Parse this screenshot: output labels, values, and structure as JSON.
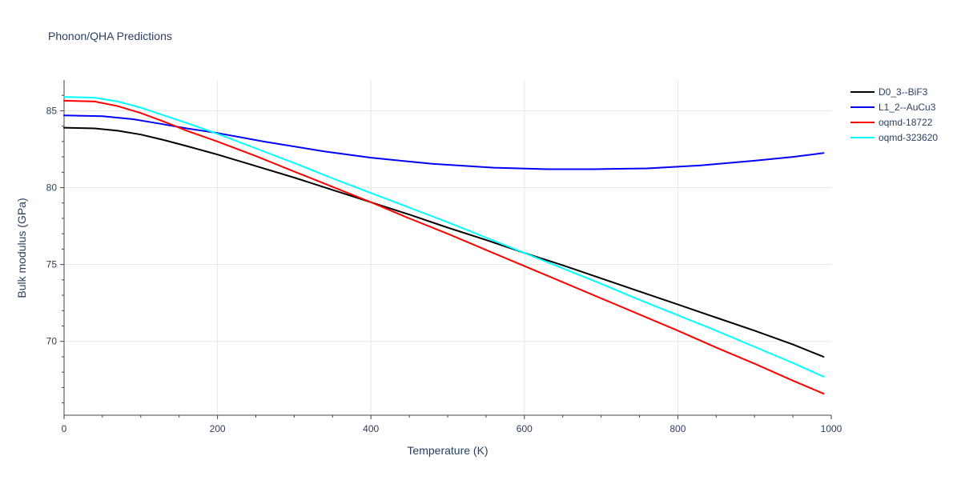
{
  "chart_data": {
    "type": "line",
    "title": "Phonon/QHA Predictions",
    "xlabel": "Temperature (K)",
    "ylabel": "Bulk modulus (GPa)",
    "xlim": [
      0,
      1000
    ],
    "ylim": [
      65.2,
      87.0
    ],
    "xticks": [
      0,
      200,
      400,
      600,
      800,
      1000
    ],
    "xtick_labels": [
      "0",
      "200",
      "400",
      "600",
      "800",
      "1000"
    ],
    "yticks": [
      70,
      75,
      80,
      85
    ],
    "ytick_labels": [
      "70",
      "75",
      "80",
      "85"
    ],
    "grid": true,
    "legend_position": "top-right",
    "series": [
      {
        "name": "D0_3--BiF3",
        "color": "#000000",
        "x": [
          0,
          40,
          70,
          100,
          130,
          160,
          200,
          250,
          300,
          350,
          400,
          450,
          500,
          550,
          600,
          650,
          700,
          750,
          800,
          850,
          900,
          950,
          990
        ],
        "y": [
          83.9,
          83.85,
          83.7,
          83.45,
          83.1,
          82.7,
          82.15,
          81.4,
          80.65,
          79.85,
          79.05,
          78.25,
          77.4,
          76.6,
          75.75,
          74.95,
          74.1,
          73.25,
          72.4,
          71.55,
          70.7,
          69.8,
          69.0
        ]
      },
      {
        "name": "L1_2--AuCu3",
        "color": "#0000ff",
        "x": [
          0,
          50,
          90,
          120,
          160,
          200,
          260,
          340,
          400,
          480,
          560,
          630,
          690,
          760,
          830,
          900,
          950,
          990
        ],
        "y": [
          84.7,
          84.65,
          84.45,
          84.2,
          83.85,
          83.55,
          83.0,
          82.35,
          81.95,
          81.55,
          81.3,
          81.2,
          81.2,
          81.25,
          81.45,
          81.75,
          82.0,
          82.25
        ]
      },
      {
        "name": "oqmd-18722",
        "color": "#ff0000",
        "x": [
          0,
          40,
          70,
          100,
          130,
          160,
          200,
          250,
          300,
          350,
          400,
          450,
          500,
          550,
          600,
          650,
          700,
          750,
          800,
          850,
          900,
          950,
          990
        ],
        "y": [
          85.65,
          85.6,
          85.3,
          84.85,
          84.3,
          83.7,
          83.0,
          82.05,
          81.05,
          80.05,
          79.05,
          78.0,
          77.0,
          75.95,
          74.9,
          73.85,
          72.8,
          71.75,
          70.7,
          69.6,
          68.55,
          67.45,
          66.6
        ]
      },
      {
        "name": "oqmd-323620",
        "color": "#00ffff",
        "x": [
          0,
          40,
          70,
          100,
          130,
          160,
          200,
          250,
          300,
          350,
          400,
          450,
          500,
          550,
          600,
          650,
          700,
          750,
          800,
          850,
          900,
          950,
          990
        ],
        "y": [
          85.9,
          85.85,
          85.6,
          85.2,
          84.7,
          84.2,
          83.5,
          82.55,
          81.6,
          80.6,
          79.65,
          78.7,
          77.75,
          76.75,
          75.75,
          74.75,
          73.75,
          72.7,
          71.7,
          70.7,
          69.65,
          68.6,
          67.7
        ]
      }
    ]
  }
}
